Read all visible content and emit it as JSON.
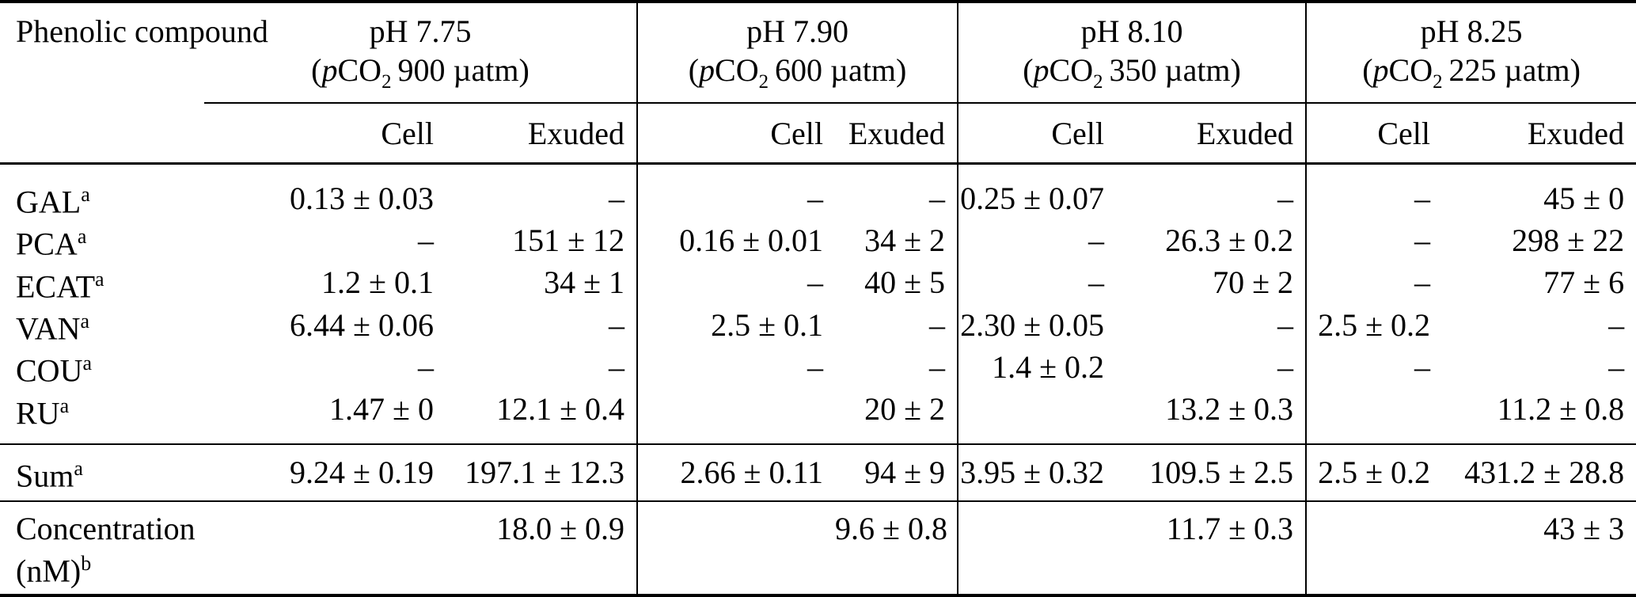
{
  "table": {
    "compound_header": "Phenolic compound",
    "formula": {
      "open": "(",
      "p": "p",
      "co": "CO",
      "sub": "2",
      "close": ")"
    },
    "groups": [
      {
        "ph": "pH 7.75",
        "pco2_amount": "900 µatm"
      },
      {
        "ph": "pH 7.90",
        "pco2_amount": "600 µatm"
      },
      {
        "ph": "pH 8.10",
        "pco2_amount": "350 µatm"
      },
      {
        "ph": "pH 8.25",
        "pco2_amount": "225 µatm"
      }
    ],
    "subheader": {
      "cell": "Cell",
      "exuded": "Exuded"
    },
    "compound_rows": [
      {
        "label": "GAL",
        "sup": "a",
        "values": [
          "0.13 ± 0.03",
          "–",
          "–",
          "–",
          "0.25 ± 0.07",
          "–",
          "–",
          "45 ± 0"
        ]
      },
      {
        "label": "PCA",
        "sup": "a",
        "values": [
          "–",
          "151 ± 12",
          "0.16 ± 0.01",
          "34 ± 2",
          "–",
          "26.3 ± 0.2",
          "–",
          "298 ± 22"
        ]
      },
      {
        "label": "ECAT",
        "sup": "a",
        "values": [
          "1.2 ± 0.1",
          "34 ± 1",
          "–",
          "40 ± 5",
          "–",
          "70 ± 2",
          "–",
          "77 ± 6"
        ]
      },
      {
        "label": "VAN",
        "sup": "a",
        "values": [
          "6.44 ± 0.06",
          "–",
          "2.5 ± 0.1",
          "–",
          "2.30 ± 0.05",
          "–",
          "2.5 ± 0.2",
          "–"
        ]
      },
      {
        "label": "COU",
        "sup": "a",
        "values": [
          "–",
          "–",
          "–",
          "–",
          "1.4 ± 0.2",
          "–",
          "–",
          "–"
        ]
      },
      {
        "label": "RU",
        "sup": "a",
        "values": [
          "1.47 ± 0",
          "12.1 ± 0.4",
          "",
          "20 ± 2",
          "",
          "13.2 ± 0.3",
          "",
          "11.2 ± 0.8"
        ]
      }
    ],
    "sum_row": {
      "label": "Sum",
      "sup": "a",
      "values": [
        "9.24 ± 0.19",
        "197.1 ± 12.3",
        "2.66 ± 0.11",
        "94 ± 9",
        "3.95 ± 0.32",
        "109.5 ± 2.5",
        "2.5 ± 0.2",
        "431.2 ± 28.8"
      ]
    },
    "concentration_row": {
      "label_lines": [
        "Concentration",
        "(nM)"
      ],
      "sup": "b",
      "values": [
        "",
        "18.0 ± 0.9",
        "",
        "9.6 ± 0.8",
        "",
        "11.7 ± 0.3",
        "",
        "43 ± 3"
      ]
    }
  }
}
